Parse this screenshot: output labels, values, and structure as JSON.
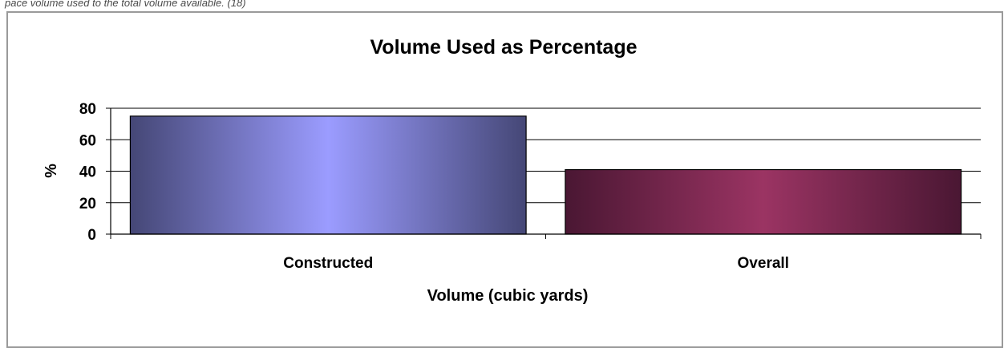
{
  "caption": "pace volume used to the total volume available. (18)",
  "chart_data": {
    "type": "bar",
    "title": "Volume Used as Percentage",
    "xlabel": "Volume (cubic yards)",
    "ylabel": "%",
    "categories": [
      "Constructed",
      "Overall"
    ],
    "values": [
      75,
      41
    ],
    "ylim": [
      0,
      80
    ],
    "yticks": [
      "0",
      "20",
      "40",
      "60",
      "80"
    ],
    "grid": true,
    "legend": "none",
    "colors": {
      "constructed": [
        "#454776",
        "#9b9cff"
      ],
      "overall": [
        "#4a1733",
        "#9b3463"
      ]
    }
  }
}
